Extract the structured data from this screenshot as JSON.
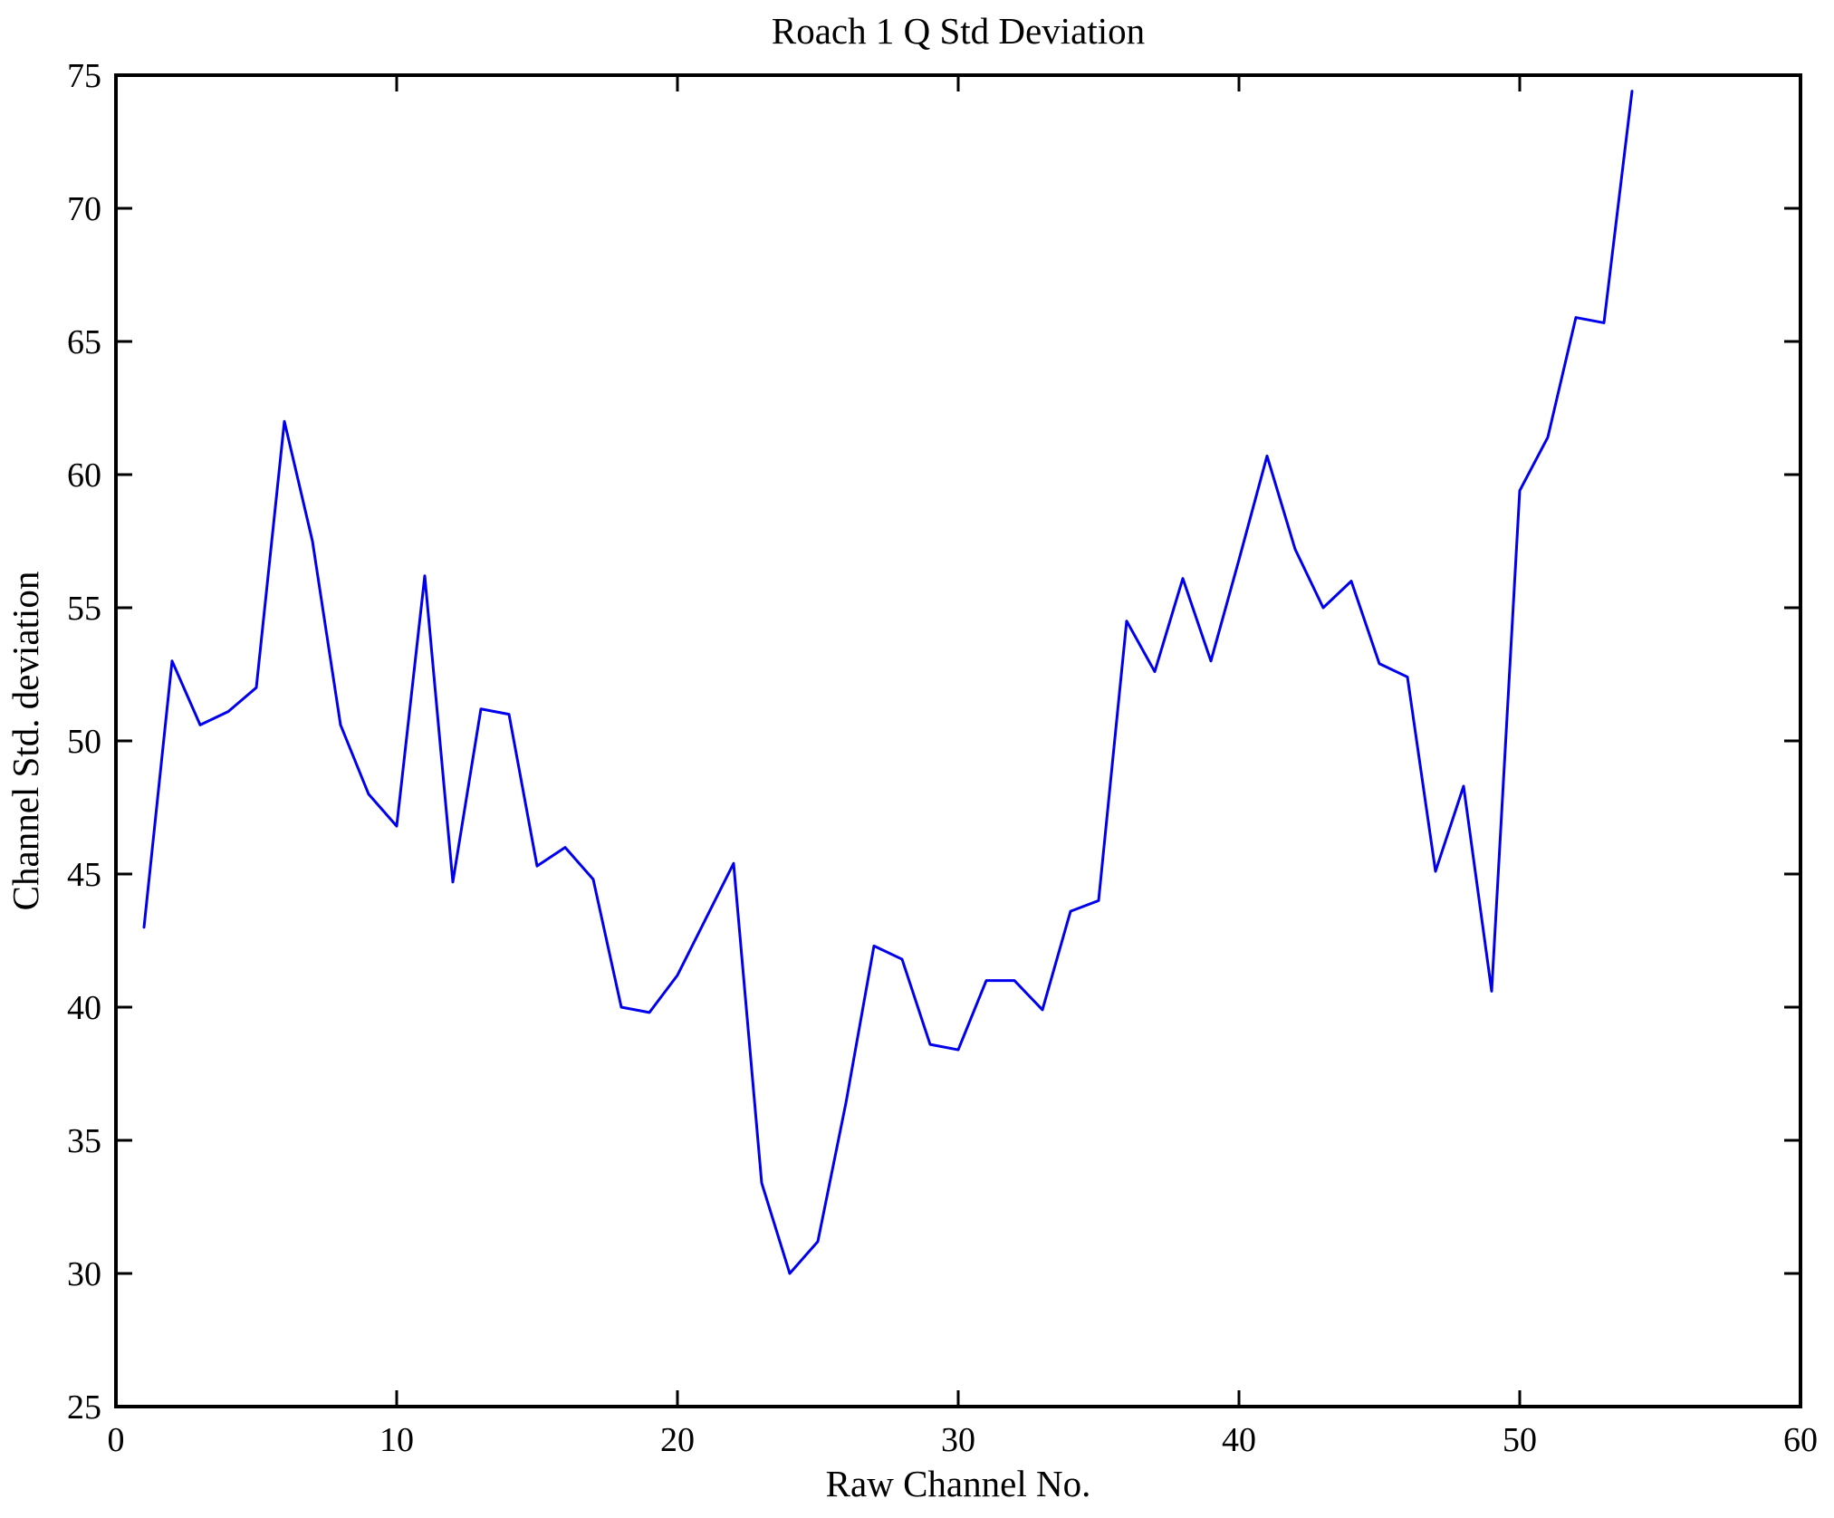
{
  "chart": {
    "title": "Roach 1 Q Std Deviation",
    "xlabel": "Raw Channel No.",
    "ylabel": "Channel Std. deviation",
    "style": {
      "line_color": "#0000ee",
      "axis_color": "#000000",
      "background": "#ffffff"
    }
  },
  "chart_data": {
    "type": "line",
    "title": "Roach 1 Q Std Deviation",
    "xlabel": "Raw Channel No.",
    "ylabel": "Channel Std. deviation",
    "xlim": [
      0,
      60
    ],
    "ylim": [
      25,
      75
    ],
    "xticks": [
      0,
      10,
      20,
      30,
      40,
      50,
      60
    ],
    "yticks": [
      25,
      30,
      35,
      40,
      45,
      50,
      55,
      60,
      65,
      70,
      75
    ],
    "grid": false,
    "legend": null,
    "series_name": "Channel Std. deviation",
    "x": [
      1,
      2,
      3,
      4,
      5,
      6,
      7,
      8,
      9,
      10,
      11,
      12,
      13,
      14,
      15,
      16,
      17,
      18,
      19,
      20,
      21,
      22,
      23,
      24,
      25,
      26,
      27,
      28,
      29,
      30,
      31,
      32,
      33,
      34,
      35,
      36,
      37,
      38,
      39,
      40,
      41,
      42,
      43,
      44,
      45,
      46,
      47,
      48,
      49,
      50,
      51,
      52,
      53,
      54
    ],
    "values": [
      43.0,
      53.0,
      50.6,
      51.1,
      52.0,
      62.0,
      57.5,
      50.6,
      48.0,
      46.8,
      56.2,
      44.7,
      51.2,
      51.0,
      45.3,
      46.0,
      44.8,
      40.0,
      39.8,
      41.2,
      43.3,
      45.4,
      33.4,
      30.0,
      31.2,
      36.4,
      42.3,
      41.8,
      38.6,
      38.4,
      41.0,
      41.0,
      39.9,
      43.6,
      44.0,
      54.5,
      52.6,
      56.1,
      53.0,
      56.8,
      60.7,
      57.2,
      55.0,
      56.0,
      52.9,
      52.4,
      45.1,
      48.3,
      40.6,
      59.4,
      61.4,
      65.9,
      65.7,
      74.4
    ]
  }
}
